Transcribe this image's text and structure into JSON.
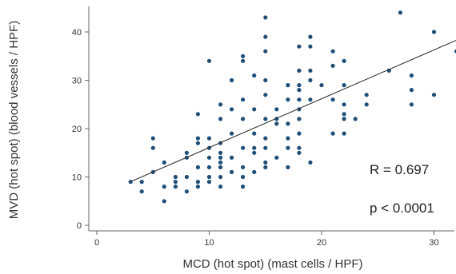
{
  "chart_data": {
    "type": "scatter",
    "title": "",
    "xlabel": "MCD (hot spot) (mast cells / HPF)",
    "ylabel": "MVD (hot spot) (blood vessels / HPF)",
    "xlim": [
      0,
      32
    ],
    "ylim": [
      0,
      45
    ],
    "xticks": [
      0,
      10,
      20,
      30
    ],
    "yticks": [
      0,
      10,
      20,
      30,
      40
    ],
    "grid": false,
    "legend": "none",
    "point_color": "#1f4e79",
    "line_color": "#333333",
    "fit_line": {
      "x": [
        3,
        32
      ],
      "y": [
        9,
        38.3
      ]
    },
    "annotations": [
      {
        "id": "r",
        "text": "R = 0.697"
      },
      {
        "id": "p",
        "text": "p < 0.0001"
      }
    ],
    "points": [
      [
        3,
        9
      ],
      [
        4,
        9
      ],
      [
        4,
        7
      ],
      [
        5,
        18
      ],
      [
        5,
        16
      ],
      [
        5,
        11
      ],
      [
        6,
        13
      ],
      [
        6,
        8
      ],
      [
        6,
        5
      ],
      [
        7,
        10
      ],
      [
        7,
        9
      ],
      [
        7,
        8
      ],
      [
        8,
        15
      ],
      [
        8,
        14
      ],
      [
        8,
        10
      ],
      [
        8,
        7
      ],
      [
        9,
        23
      ],
      [
        9,
        18
      ],
      [
        9,
        17
      ],
      [
        9,
        12
      ],
      [
        9,
        9
      ],
      [
        9,
        8
      ],
      [
        10,
        34
      ],
      [
        10,
        18
      ],
      [
        10,
        16
      ],
      [
        10,
        14
      ],
      [
        10,
        12
      ],
      [
        10,
        10
      ],
      [
        10,
        9
      ],
      [
        11,
        25
      ],
      [
        11,
        22
      ],
      [
        11,
        17
      ],
      [
        11,
        15
      ],
      [
        11,
        14
      ],
      [
        11,
        13
      ],
      [
        11,
        12
      ],
      [
        11,
        10
      ],
      [
        11,
        8
      ],
      [
        12,
        30
      ],
      [
        12,
        24
      ],
      [
        12,
        19
      ],
      [
        12,
        14
      ],
      [
        12,
        11
      ],
      [
        13,
        35
      ],
      [
        13,
        34
      ],
      [
        13,
        26
      ],
      [
        13,
        22
      ],
      [
        13,
        16
      ],
      [
        13,
        12
      ],
      [
        13,
        10
      ],
      [
        13,
        8
      ],
      [
        14,
        31
      ],
      [
        14,
        24
      ],
      [
        14,
        19
      ],
      [
        14,
        16
      ],
      [
        14,
        15
      ],
      [
        14,
        11
      ],
      [
        15,
        43
      ],
      [
        15,
        39
      ],
      [
        15,
        36
      ],
      [
        15,
        30
      ],
      [
        15,
        27
      ],
      [
        15,
        22
      ],
      [
        15,
        18
      ],
      [
        15,
        16
      ],
      [
        15,
        13
      ],
      [
        15,
        12
      ],
      [
        16,
        24
      ],
      [
        16,
        22
      ],
      [
        16,
        21
      ],
      [
        16,
        14
      ],
      [
        17,
        29
      ],
      [
        17,
        26
      ],
      [
        17,
        21
      ],
      [
        17,
        18
      ],
      [
        17,
        16
      ],
      [
        17,
        12
      ],
      [
        18,
        37
      ],
      [
        18,
        32
      ],
      [
        18,
        29
      ],
      [
        18,
        28
      ],
      [
        18,
        26
      ],
      [
        18,
        24
      ],
      [
        18,
        22
      ],
      [
        18,
        19
      ],
      [
        18,
        16
      ],
      [
        18,
        15
      ],
      [
        19,
        39
      ],
      [
        19,
        37
      ],
      [
        19,
        32
      ],
      [
        19,
        30
      ],
      [
        19,
        26
      ],
      [
        19,
        13
      ],
      [
        20,
        29
      ],
      [
        21,
        36
      ],
      [
        21,
        33
      ],
      [
        21,
        26
      ],
      [
        21,
        19
      ],
      [
        22,
        34
      ],
      [
        22,
        29
      ],
      [
        22,
        25
      ],
      [
        22,
        23
      ],
      [
        22,
        22
      ],
      [
        22,
        19
      ],
      [
        23,
        22
      ],
      [
        24,
        27
      ],
      [
        24,
        25
      ],
      [
        26,
        32
      ],
      [
        27,
        44
      ],
      [
        28,
        31
      ],
      [
        28,
        28
      ],
      [
        28,
        25
      ],
      [
        30,
        40
      ],
      [
        30,
        27
      ],
      [
        32,
        36
      ]
    ]
  }
}
